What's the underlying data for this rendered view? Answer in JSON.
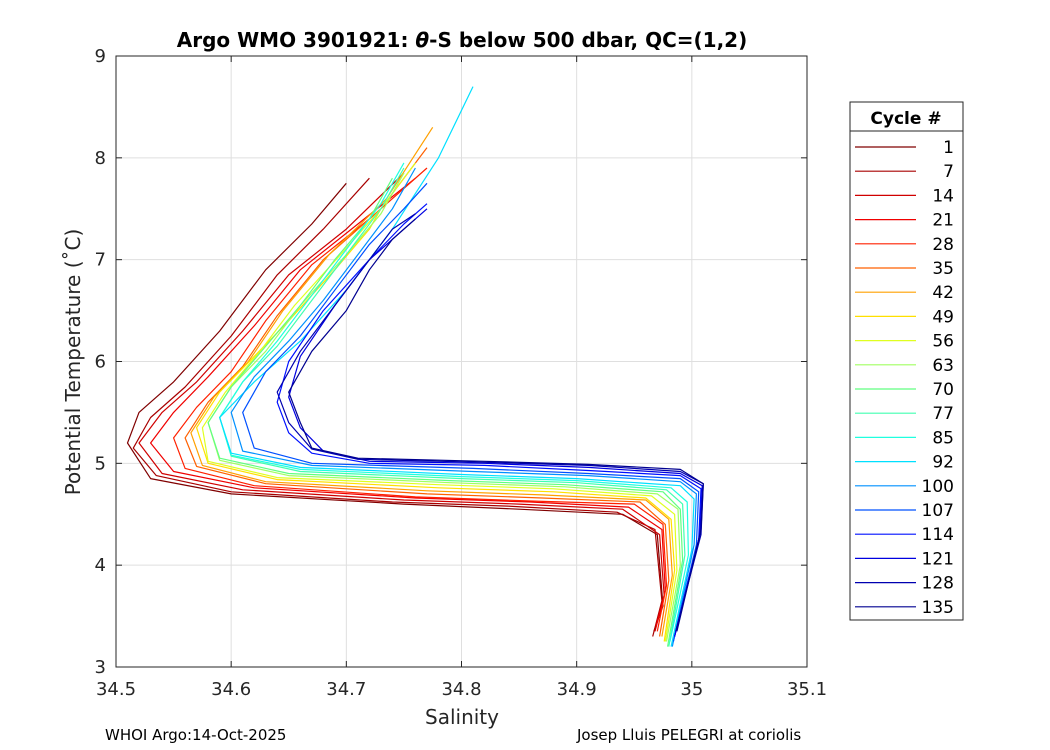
{
  "chart_data": {
    "type": "line",
    "title_prefix": "Argo WMO 3901921: ",
    "title_theta": "θ",
    "title_suffix": "-S below 500 dbar,  QC=(1,2)",
    "xlabel": "Salinity",
    "ylabel": "Potential Temperature (˚C)",
    "xlim": [
      34.5,
      35.1
    ],
    "ylim": [
      3,
      9
    ],
    "x_ticks": [
      "34.5",
      "34.6",
      "34.7",
      "34.8",
      "34.9",
      "35",
      "35.1"
    ],
    "y_ticks": [
      "3",
      "4",
      "5",
      "6",
      "7",
      "8",
      "9"
    ],
    "grid": true,
    "legend": {
      "title": "Cycle #",
      "position": "right",
      "entries": [
        {
          "label": "1",
          "color": "#800000"
        },
        {
          "label": "7",
          "color": "#a80000"
        },
        {
          "label": "14",
          "color": "#d00000"
        },
        {
          "label": "21",
          "color": "#f00000"
        },
        {
          "label": "28",
          "color": "#ff2000"
        },
        {
          "label": "35",
          "color": "#ff6000"
        },
        {
          "label": "42",
          "color": "#ffa000"
        },
        {
          "label": "49",
          "color": "#ffe000"
        },
        {
          "label": "56",
          "color": "#e0ff20"
        },
        {
          "label": "63",
          "color": "#a0ff60"
        },
        {
          "label": "70",
          "color": "#60ff80"
        },
        {
          "label": "77",
          "color": "#40ffb0"
        },
        {
          "label": "85",
          "color": "#20ffe0"
        },
        {
          "label": "92",
          "color": "#00e0ff"
        },
        {
          "label": "100",
          "color": "#0090ff"
        },
        {
          "label": "107",
          "color": "#0050ff"
        },
        {
          "label": "114",
          "color": "#0010ff"
        },
        {
          "label": "121",
          "color": "#0000e0"
        },
        {
          "label": "128",
          "color": "#0000b0"
        },
        {
          "label": "135",
          "color": "#000090"
        }
      ]
    },
    "series": [
      {
        "name": "1",
        "color": "#800000",
        "x": [
          34.967,
          34.975,
          34.97,
          34.94,
          34.85,
          34.75,
          34.6,
          34.53,
          34.51,
          34.52,
          34.55,
          34.59,
          34.63,
          34.67,
          34.7
        ],
        "y": [
          3.35,
          3.6,
          4.3,
          4.5,
          4.55,
          4.6,
          4.7,
          4.85,
          5.2,
          5.5,
          5.8,
          6.3,
          6.9,
          7.35,
          7.75
        ]
      },
      {
        "name": "7",
        "color": "#a80000",
        "x": [
          34.966,
          34.974,
          34.968,
          34.935,
          34.84,
          34.74,
          34.6,
          34.535,
          34.515,
          34.53,
          34.56,
          34.6,
          34.64,
          34.68,
          34.72
        ],
        "y": [
          3.3,
          3.65,
          4.35,
          4.52,
          4.58,
          4.62,
          4.72,
          4.88,
          5.15,
          5.45,
          5.75,
          6.25,
          6.85,
          7.3,
          7.8
        ]
      },
      {
        "name": "14",
        "color": "#d00000",
        "x": [
          34.968,
          34.976,
          34.972,
          34.94,
          34.85,
          34.75,
          34.61,
          34.54,
          34.52,
          34.54,
          34.57,
          34.61,
          34.65,
          34.7,
          34.75
        ],
        "y": [
          3.35,
          3.7,
          4.3,
          4.55,
          4.6,
          4.64,
          4.74,
          4.9,
          5.2,
          5.5,
          5.8,
          6.3,
          6.85,
          7.3,
          7.85
        ]
      },
      {
        "name": "21",
        "color": "#f00000",
        "x": [
          34.969,
          34.977,
          34.974,
          34.945,
          34.86,
          34.76,
          34.62,
          34.55,
          34.53,
          34.55,
          34.58,
          34.62,
          34.66,
          34.71,
          34.76
        ],
        "y": [
          3.4,
          3.75,
          4.35,
          4.57,
          4.62,
          4.66,
          4.76,
          4.92,
          5.2,
          5.5,
          5.85,
          6.35,
          6.9,
          7.35,
          7.8
        ]
      },
      {
        "name": "28",
        "color": "#ff2000",
        "x": [
          34.97,
          34.978,
          34.975,
          34.95,
          34.86,
          34.76,
          34.62,
          34.56,
          34.55,
          34.57,
          34.6,
          34.63,
          34.67,
          34.72,
          34.77
        ],
        "y": [
          3.35,
          3.8,
          4.4,
          4.6,
          4.63,
          4.67,
          4.78,
          4.95,
          5.25,
          5.55,
          5.9,
          6.4,
          6.95,
          7.4,
          7.9
        ]
      },
      {
        "name": "35",
        "color": "#ff6000",
        "x": [
          34.972,
          34.98,
          34.977,
          34.955,
          34.87,
          34.77,
          34.63,
          34.57,
          34.56,
          34.58,
          34.61,
          34.64,
          34.68,
          34.73,
          34.77
        ],
        "y": [
          3.3,
          3.85,
          4.4,
          4.62,
          4.66,
          4.7,
          4.8,
          4.97,
          5.25,
          5.6,
          5.95,
          6.45,
          7.0,
          7.5,
          8.1
        ]
      },
      {
        "name": "42",
        "color": "#ffa000",
        "x": [
          34.974,
          34.983,
          34.98,
          34.96,
          34.87,
          34.77,
          34.63,
          34.575,
          34.565,
          34.585,
          34.615,
          34.645,
          34.685,
          34.735,
          34.775
        ],
        "y": [
          3.3,
          3.9,
          4.45,
          4.64,
          4.69,
          4.73,
          4.82,
          4.98,
          5.3,
          5.65,
          6.0,
          6.5,
          7.05,
          7.6,
          8.3
        ]
      },
      {
        "name": "49",
        "color": "#ffe000",
        "x": [
          34.976,
          34.985,
          34.982,
          34.96,
          34.88,
          34.78,
          34.64,
          34.58,
          34.57,
          34.59,
          34.62,
          34.65,
          34.69,
          34.72,
          34.73
        ],
        "y": [
          3.25,
          3.95,
          4.45,
          4.66,
          4.72,
          4.76,
          4.84,
          5.0,
          5.35,
          5.7,
          6.05,
          6.4,
          6.9,
          7.3,
          7.5
        ]
      },
      {
        "name": "56",
        "color": "#e0ff20",
        "x": [
          34.977,
          34.987,
          34.985,
          34.965,
          34.88,
          34.78,
          34.64,
          34.58,
          34.575,
          34.595,
          34.625,
          34.655,
          34.695,
          34.73,
          34.76
        ],
        "y": [
          3.25,
          3.95,
          4.5,
          4.68,
          4.75,
          4.79,
          4.86,
          5.02,
          5.35,
          5.7,
          6.1,
          6.55,
          7.05,
          7.5,
          7.95
        ]
      },
      {
        "name": "63",
        "color": "#a0ff60",
        "x": [
          34.978,
          34.99,
          34.988,
          34.97,
          34.89,
          34.79,
          34.65,
          34.59,
          34.58,
          34.6,
          34.63,
          34.66,
          34.7,
          34.73,
          34.75
        ],
        "y": [
          3.25,
          4.0,
          4.55,
          4.7,
          4.77,
          4.81,
          4.88,
          5.03,
          5.4,
          5.75,
          6.1,
          6.55,
          7.05,
          7.45,
          7.85
        ]
      },
      {
        "name": "70",
        "color": "#60ff80",
        "x": [
          34.979,
          34.992,
          34.99,
          34.975,
          34.89,
          34.79,
          34.65,
          34.59,
          34.58,
          34.6,
          34.63,
          34.66,
          34.69,
          34.72,
          34.74
        ],
        "y": [
          3.2,
          4.05,
          4.55,
          4.72,
          4.79,
          4.83,
          4.9,
          5.05,
          5.4,
          5.75,
          6.15,
          6.55,
          7.0,
          7.4,
          7.8
        ]
      },
      {
        "name": "77",
        "color": "#40ffb0",
        "x": [
          34.98,
          34.994,
          34.992,
          34.978,
          34.9,
          34.8,
          34.66,
          34.6,
          34.59,
          34.61,
          34.64,
          34.67,
          34.7,
          34.73,
          34.75
        ],
        "y": [
          3.2,
          4.1,
          4.6,
          4.74,
          4.81,
          4.85,
          4.92,
          5.07,
          5.45,
          5.8,
          6.15,
          6.6,
          7.05,
          7.5,
          7.9
        ]
      },
      {
        "name": "85",
        "color": "#20ffe0",
        "x": [
          34.981,
          34.997,
          34.996,
          34.982,
          34.9,
          34.8,
          34.66,
          34.6,
          34.59,
          34.61,
          34.64,
          34.67,
          34.7,
          34.73,
          34.75
        ],
        "y": [
          3.25,
          4.1,
          4.62,
          4.76,
          4.83,
          4.87,
          4.94,
          5.08,
          5.45,
          5.8,
          6.2,
          6.65,
          7.1,
          7.55,
          7.95
        ]
      },
      {
        "name": "92",
        "color": "#00e0ff",
        "x": [
          34.982,
          35.0,
          35.002,
          34.99,
          34.9,
          34.8,
          34.66,
          34.6,
          34.59,
          34.62,
          34.66,
          34.7,
          34.74,
          34.78,
          34.81
        ],
        "y": [
          3.2,
          4.15,
          4.65,
          4.78,
          4.85,
          4.89,
          4.96,
          5.1,
          5.45,
          5.8,
          6.2,
          6.7,
          7.3,
          8.0,
          8.7
        ]
      },
      {
        "name": "100",
        "color": "#0090ff",
        "x": [
          34.983,
          35.002,
          35.004,
          34.99,
          34.91,
          34.81,
          34.67,
          34.61,
          34.6,
          34.62,
          34.65,
          34.68,
          34.71,
          34.74,
          34.76
        ],
        "y": [
          3.2,
          4.2,
          4.7,
          4.82,
          4.88,
          4.92,
          4.98,
          5.12,
          5.5,
          5.85,
          6.2,
          6.6,
          7.05,
          7.5,
          7.9
        ]
      },
      {
        "name": "107",
        "color": "#0050ff",
        "x": [
          34.984,
          35.004,
          35.006,
          34.99,
          34.91,
          34.81,
          34.67,
          34.62,
          34.61,
          34.63,
          34.66,
          34.69,
          34.72,
          34.75,
          34.77
        ],
        "y": [
          3.25,
          4.2,
          4.72,
          4.85,
          4.9,
          4.95,
          5.0,
          5.15,
          5.5,
          5.9,
          6.25,
          6.7,
          7.15,
          7.5,
          7.75
        ]
      },
      {
        "name": "114",
        "color": "#0010ff",
        "x": [
          34.985,
          35.006,
          35.008,
          34.99,
          34.91,
          34.82,
          34.72,
          34.67,
          34.65,
          34.64,
          34.65,
          34.68,
          34.72,
          34.75,
          34.77
        ],
        "y": [
          3.3,
          4.25,
          4.75,
          4.88,
          4.93,
          4.98,
          5.0,
          5.1,
          5.3,
          5.6,
          6.0,
          6.5,
          7.0,
          7.35,
          7.55
        ]
      },
      {
        "name": "121",
        "color": "#0000e0",
        "x": [
          34.985,
          35.007,
          35.009,
          34.99,
          34.91,
          34.82,
          34.72,
          34.68,
          34.66,
          34.65,
          34.66,
          34.69,
          34.72,
          34.75,
          34.77
        ],
        "y": [
          3.3,
          4.3,
          4.78,
          4.9,
          4.96,
          5.0,
          5.02,
          5.12,
          5.35,
          5.65,
          6.05,
          6.55,
          7.0,
          7.3,
          7.5
        ]
      },
      {
        "name": "128",
        "color": "#0000b0",
        "x": [
          34.986,
          35.008,
          35.01,
          34.99,
          34.91,
          34.82,
          34.71,
          34.67,
          34.65,
          34.64,
          34.66,
          34.69,
          34.72,
          34.74,
          34.76
        ],
        "y": [
          3.35,
          4.3,
          4.8,
          4.92,
          4.98,
          5.01,
          5.04,
          5.14,
          5.4,
          5.7,
          6.1,
          6.55,
          7.0,
          7.3,
          7.45
        ]
      },
      {
        "name": "135",
        "color": "#000090",
        "x": [
          34.987,
          35.008,
          35.01,
          34.99,
          34.91,
          34.82,
          34.71,
          34.67,
          34.66,
          34.65,
          34.67,
          34.7,
          34.72,
          34.74,
          34.76
        ],
        "y": [
          3.35,
          4.35,
          4.8,
          4.94,
          4.99,
          5.02,
          5.05,
          5.15,
          5.4,
          5.7,
          6.1,
          6.5,
          6.9,
          7.2,
          7.4
        ]
      }
    ]
  },
  "footer": {
    "left": "WHOI Argo:14-Oct-2025",
    "right": "Josep Lluis PELEGRI at coriolis"
  }
}
